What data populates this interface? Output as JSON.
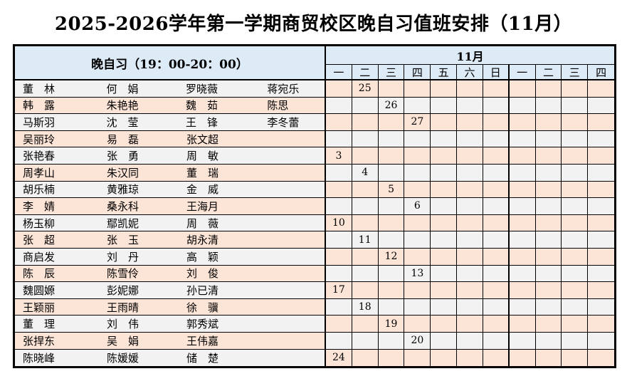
{
  "title": "2025-2026学年第一学期商贸校区晚自习值班安排（11月）",
  "colors": {
    "header_bg": "#DDEBF7",
    "row_peach": "#FCE4D6",
    "row_gray": "#F2F2F2",
    "border": "#000000",
    "page_bg": "#FFFFFF"
  },
  "table": {
    "left_header": "晚自习（19：00-20：00）",
    "month_header": "11月",
    "day_headers": [
      "一",
      "二",
      "三",
      "四",
      "五",
      "六",
      "日",
      "一",
      "二",
      "三",
      "四"
    ],
    "rows": [
      {
        "names": [
          "董　林",
          "何　娟",
          "罗晓薇",
          "蒋宛乐"
        ],
        "dates": [
          "",
          "25",
          "",
          "",
          "",
          "",
          "",
          "",
          "",
          "",
          ""
        ]
      },
      {
        "names": [
          "韩　露",
          "朱艳艳",
          "魏　茹",
          "陈思"
        ],
        "dates": [
          "",
          "",
          "26",
          "",
          "",
          "",
          "",
          "",
          "",
          "",
          ""
        ]
      },
      {
        "names": [
          "马斯羽",
          "沈　莹",
          "王　锋",
          "李冬蕾"
        ],
        "dates": [
          "",
          "",
          "",
          "27",
          "",
          "",
          "",
          "",
          "",
          "",
          ""
        ]
      },
      {
        "names": [
          "吴丽玲",
          "易　磊",
          "张文超"
        ],
        "dates": [
          "",
          "",
          "",
          "",
          "",
          "",
          "",
          "",
          "",
          "",
          ""
        ]
      },
      {
        "names": [
          "张艳春",
          "张　勇",
          "周　敏"
        ],
        "dates": [
          "3",
          "",
          "",
          "",
          "",
          "",
          "",
          "",
          "",
          "",
          ""
        ]
      },
      {
        "names": [
          "周孝山",
          "朱汉同",
          "董　瑞"
        ],
        "dates": [
          "",
          "4",
          "",
          "",
          "",
          "",
          "",
          "",
          "",
          "",
          ""
        ]
      },
      {
        "names": [
          "胡乐楠",
          "黄雅琼",
          "金　威"
        ],
        "dates": [
          "",
          "",
          "5",
          "",
          "",
          "",
          "",
          "",
          "",
          "",
          ""
        ]
      },
      {
        "names": [
          "李　婧",
          "桑永科",
          "王海月"
        ],
        "dates": [
          "",
          "",
          "",
          "6",
          "",
          "",
          "",
          "",
          "",
          "",
          ""
        ]
      },
      {
        "names": [
          "杨玉柳",
          "鄢凯妮",
          "周　薇"
        ],
        "dates": [
          "10",
          "",
          "",
          "",
          "",
          "",
          "",
          "",
          "",
          "",
          ""
        ]
      },
      {
        "names": [
          "张　超",
          "张　玉",
          "胡永清"
        ],
        "dates": [
          "",
          "11",
          "",
          "",
          "",
          "",
          "",
          "",
          "",
          "",
          ""
        ]
      },
      {
        "names": [
          "商启发",
          "刘　丹",
          "高　颖"
        ],
        "dates": [
          "",
          "",
          "12",
          "",
          "",
          "",
          "",
          "",
          "",
          "",
          ""
        ]
      },
      {
        "names": [
          "陈　辰",
          "陈雪伶",
          "刘　俊"
        ],
        "dates": [
          "",
          "",
          "",
          "13",
          "",
          "",
          "",
          "",
          "",
          "",
          ""
        ]
      },
      {
        "names": [
          "魏圆嫄",
          "彭妮娜",
          "孙已清"
        ],
        "dates": [
          "17",
          "",
          "",
          "",
          "",
          "",
          "",
          "",
          "",
          "",
          ""
        ]
      },
      {
        "names": [
          "王颖丽",
          "王雨晴",
          "徐　骥"
        ],
        "dates": [
          "",
          "18",
          "",
          "",
          "",
          "",
          "",
          "",
          "",
          "",
          ""
        ]
      },
      {
        "names": [
          "董　理",
          "刘　伟",
          "郭秀斌"
        ],
        "dates": [
          "",
          "",
          "19",
          "",
          "",
          "",
          "",
          "",
          "",
          "",
          ""
        ]
      },
      {
        "names": [
          "张捍东",
          "吴　娟",
          "王伟嘉"
        ],
        "dates": [
          "",
          "",
          "",
          "20",
          "",
          "",
          "",
          "",
          "",
          "",
          ""
        ]
      },
      {
        "names": [
          "陈晓峰",
          "陈媛媛",
          "储　楚"
        ],
        "dates": [
          "24",
          "",
          "",
          "",
          "",
          "",
          "",
          "",
          "",
          "",
          ""
        ]
      }
    ]
  }
}
